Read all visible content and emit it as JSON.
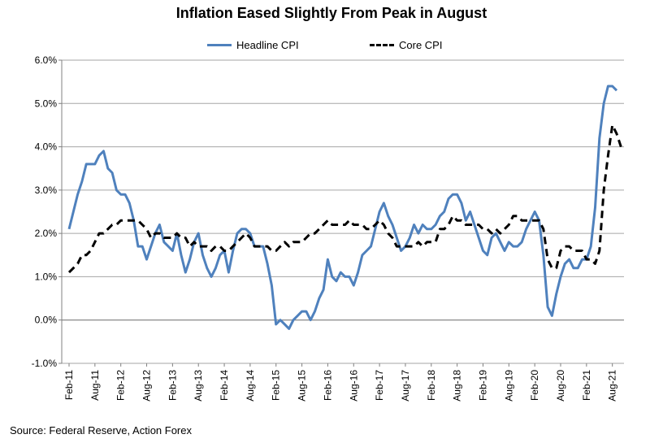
{
  "chart_data": {
    "type": "line",
    "title": "Inflation Eased Slightly From Peak in August",
    "source": "Source: Federal Reserve, Action Forex",
    "ylim": [
      -1.0,
      6.0
    ],
    "ytick_values": [
      -1.0,
      0.0,
      1.0,
      2.0,
      3.0,
      4.0,
      5.0,
      6.0
    ],
    "ytick_labels": [
      "-1.0%",
      "0.0%",
      "1.0%",
      "2.0%",
      "3.0%",
      "4.0%",
      "5.0%",
      "6.0%"
    ],
    "xtick_labels": [
      "Feb-11",
      "Aug-11",
      "Feb-12",
      "Aug-12",
      "Feb-13",
      "Aug-13",
      "Feb-14",
      "Aug-14",
      "Feb-15",
      "Aug-15",
      "Feb-16",
      "Aug-16",
      "Feb-17",
      "Aug-17",
      "Feb-18",
      "Aug-18",
      "Feb-19",
      "Aug-19",
      "Feb-20",
      "Aug-20",
      "Feb-21",
      "Aug-21"
    ],
    "start": "Feb-11",
    "end": "Aug-21",
    "series": [
      {
        "name": "Headline CPI",
        "color": "#4f81bd",
        "style": "solid",
        "values": [
          2.1,
          2.5,
          2.9,
          3.2,
          3.6,
          3.6,
          3.6,
          3.8,
          3.9,
          3.5,
          3.4,
          3.0,
          2.9,
          2.9,
          2.7,
          2.3,
          1.7,
          1.7,
          1.4,
          1.7,
          2.0,
          2.2,
          1.8,
          1.7,
          1.6,
          2.0,
          1.5,
          1.1,
          1.4,
          1.8,
          2.0,
          1.5,
          1.2,
          1.0,
          1.2,
          1.5,
          1.6,
          1.1,
          1.6,
          2.0,
          2.1,
          2.1,
          2.0,
          1.7,
          1.7,
          1.7,
          1.3,
          0.8,
          -0.1,
          0.0,
          -0.1,
          -0.2,
          0.0,
          0.1,
          0.2,
          0.2,
          0.0,
          0.2,
          0.5,
          0.7,
          1.4,
          1.0,
          0.9,
          1.1,
          1.0,
          1.0,
          0.8,
          1.1,
          1.5,
          1.6,
          1.7,
          2.1,
          2.5,
          2.7,
          2.4,
          2.2,
          1.9,
          1.6,
          1.7,
          1.9,
          2.2,
          2.0,
          2.2,
          2.1,
          2.1,
          2.2,
          2.4,
          2.5,
          2.8,
          2.9,
          2.9,
          2.7,
          2.3,
          2.5,
          2.2,
          1.9,
          1.6,
          1.5,
          1.9,
          2.0,
          1.8,
          1.6,
          1.8,
          1.7,
          1.7,
          1.8,
          2.1,
          2.3,
          2.5,
          2.3,
          1.5,
          0.3,
          0.1,
          0.6,
          1.0,
          1.3,
          1.4,
          1.2,
          1.2,
          1.4,
          1.4,
          1.7,
          2.6,
          4.2,
          5.0,
          5.4,
          5.4,
          5.3
        ]
      },
      {
        "name": "Core CPI",
        "color": "#000000",
        "style": "dashed",
        "values": [
          1.1,
          1.2,
          1.3,
          1.5,
          1.5,
          1.6,
          1.8,
          2.0,
          2.0,
          2.1,
          2.2,
          2.2,
          2.3,
          2.3,
          2.3,
          2.3,
          2.3,
          2.2,
          2.1,
          1.9,
          2.0,
          2.0,
          1.9,
          1.9,
          1.9,
          2.0,
          1.9,
          1.9,
          1.7,
          1.8,
          1.7,
          1.7,
          1.7,
          1.6,
          1.7,
          1.7,
          1.6,
          1.6,
          1.7,
          1.8,
          1.9,
          2.0,
          1.9,
          1.7,
          1.7,
          1.7,
          1.7,
          1.6,
          1.6,
          1.7,
          1.8,
          1.7,
          1.8,
          1.8,
          1.8,
          1.9,
          2.0,
          2.0,
          2.1,
          2.2,
          2.3,
          2.2,
          2.2,
          2.2,
          2.2,
          2.3,
          2.2,
          2.2,
          2.2,
          2.1,
          2.1,
          2.2,
          2.3,
          2.2,
          2.0,
          1.9,
          1.7,
          1.7,
          1.7,
          1.7,
          1.7,
          1.8,
          1.7,
          1.8,
          1.8,
          1.8,
          2.1,
          2.1,
          2.2,
          2.4,
          2.3,
          2.3,
          2.2,
          2.2,
          2.2,
          2.2,
          2.1,
          2.1,
          2.0,
          2.1,
          2.0,
          2.1,
          2.2,
          2.4,
          2.4,
          2.3,
          2.3,
          2.3,
          2.3,
          2.3,
          2.1,
          1.4,
          1.2,
          1.2,
          1.6,
          1.7,
          1.7,
          1.6,
          1.6,
          1.6,
          1.4,
          1.4,
          1.3,
          1.6,
          3.0,
          3.8,
          4.5,
          4.3,
          4.0
        ]
      }
    ]
  }
}
